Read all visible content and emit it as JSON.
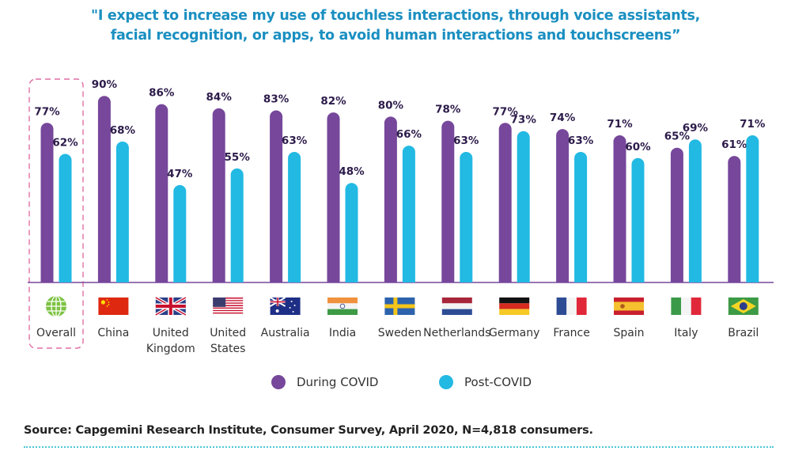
{
  "title_lines": [
    "\"I expect to increase my use of touchless interactions, through voice assistants,",
    "facial recognition, or apps, to avoid human interactions and touchscreens”"
  ],
  "colors": {
    "during": "#76479b",
    "post": "#22b9e3",
    "title": "#1a8fc1",
    "highlight_box": "#e06fa3",
    "label": "#2c1b4a",
    "axis": "#76479b",
    "source_rule": "#4dc6d6"
  },
  "legend": {
    "during_label": "During COVID",
    "post_label": "Post-COVID"
  },
  "source": "Source: Capgemini Research Institute, Consumer Survey, April 2020, N=4,818 consumers.",
  "chart_data": {
    "type": "bar",
    "title": "\"I expect to increase my use of touchless interactions, through voice assistants, facial recognition, or apps, to avoid human interactions and touchscreens”",
    "xlabel": "",
    "ylabel": "",
    "ylim": [
      0,
      100
    ],
    "grid": false,
    "legend_position": "bottom",
    "highlighted_category": "Overall",
    "categories": [
      {
        "label_lines": [
          "Overall"
        ],
        "icon": "globe-icon"
      },
      {
        "label_lines": [
          "China"
        ],
        "icon": "china-flag-icon"
      },
      {
        "label_lines": [
          "United",
          "Kingdom"
        ],
        "icon": "uk-flag-icon"
      },
      {
        "label_lines": [
          "United",
          "States"
        ],
        "icon": "us-flag-icon"
      },
      {
        "label_lines": [
          "Australia"
        ],
        "icon": "australia-flag-icon"
      },
      {
        "label_lines": [
          "India"
        ],
        "icon": "india-flag-icon"
      },
      {
        "label_lines": [
          "Sweden"
        ],
        "icon": "sweden-flag-icon"
      },
      {
        "label_lines": [
          "Netherlands"
        ],
        "icon": "netherlands-flag-icon"
      },
      {
        "label_lines": [
          "Germany"
        ],
        "icon": "germany-flag-icon"
      },
      {
        "label_lines": [
          "France"
        ],
        "icon": "france-flag-icon"
      },
      {
        "label_lines": [
          "Spain"
        ],
        "icon": "spain-flag-icon"
      },
      {
        "label_lines": [
          "Italy"
        ],
        "icon": "italy-flag-icon"
      },
      {
        "label_lines": [
          "Brazil"
        ],
        "icon": "brazil-flag-icon"
      }
    ],
    "series": [
      {
        "name": "During COVID",
        "values": [
          77,
          90,
          86,
          84,
          83,
          82,
          80,
          78,
          77,
          74,
          71,
          65,
          61
        ]
      },
      {
        "name": "Post-COVID",
        "values": [
          62,
          68,
          47,
          55,
          63,
          48,
          66,
          63,
          73,
          63,
          60,
          69,
          71
        ]
      }
    ],
    "value_suffix": "%"
  }
}
